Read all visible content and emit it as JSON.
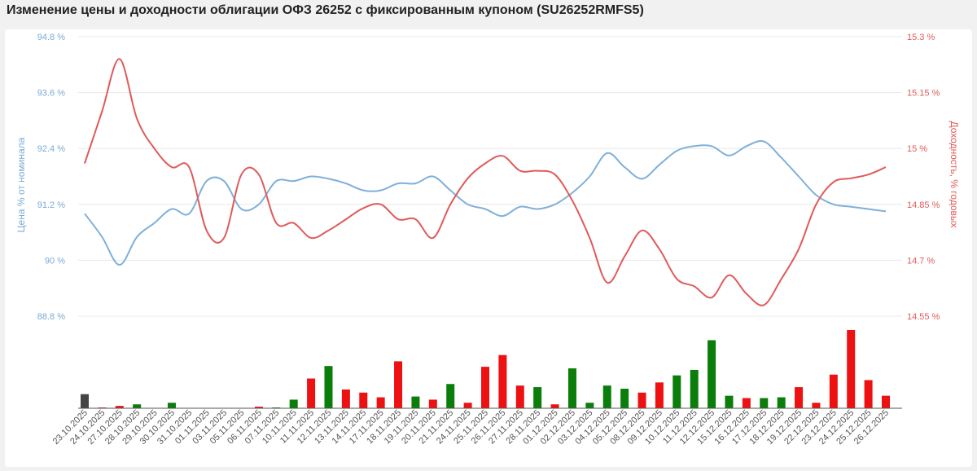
{
  "page": {
    "title": "Изменение цены и доходности облигации ОФЗ 26252 с фиксированным купоном (SU26252RMFS5)"
  },
  "colors": {
    "price_line": "#7fb0d9",
    "yield_line": "#e05a5a",
    "bar_up": "#0a7d0a",
    "bar_down": "#ee1111",
    "bar_neutral": "#444444",
    "price_axis_text": "#7aaad6",
    "yield_axis_text": "#e05a5a",
    "grid": "#e8e8e8"
  },
  "chart_data": {
    "type": "line",
    "title": "",
    "ylabel_left": "Цена % от номинала",
    "ylabel_right": "Доходность, % годовых",
    "left_ticks": [
      "94.8 %",
      "93.6 %",
      "92.4 %",
      "91.2 %",
      "90 %",
      "88.8 %"
    ],
    "right_ticks": [
      "15.3 %",
      "15.15 %",
      "15 %",
      "14.85 %",
      "14.7 %",
      "14.55 %"
    ],
    "ylim_left": [
      88.8,
      94.8
    ],
    "ylim_right": [
      14.55,
      15.3
    ],
    "categories": [
      "23.10.2025",
      "24.10.2025",
      "27.10.2025",
      "28.10.2025",
      "29.10.2025",
      "30.10.2025",
      "31.10.2025",
      "01.11.2025",
      "03.11.2025",
      "05.11.2025",
      "06.11.2025",
      "07.11.2025",
      "10.11.2025",
      "11.11.2025",
      "12.11.2025",
      "13.11.2025",
      "14.11.2025",
      "17.11.2025",
      "18.11.2025",
      "19.11.2025",
      "20.11.2025",
      "21.11.2025",
      "24.11.2025",
      "25.11.2025",
      "26.11.2025",
      "27.11.2025",
      "28.11.2025",
      "01.12.2025",
      "02.12.2025",
      "03.12.2025",
      "04.12.2025",
      "05.12.2025",
      "08.12.2025",
      "09.12.2025",
      "10.12.2025",
      "11.12.2025",
      "12.12.2025",
      "15.12.2025",
      "16.12.2025",
      "17.12.2025",
      "18.12.2025",
      "19.12.2025",
      "22.12.2025",
      "23.12.2025",
      "24.12.2025",
      "25.12.2025",
      "26.12.2025"
    ],
    "series": [
      {
        "name": "Цена % от номинала",
        "axis": "left",
        "values": [
          91.0,
          90.5,
          89.9,
          90.5,
          90.8,
          91.1,
          91.0,
          91.7,
          91.7,
          91.1,
          91.2,
          91.7,
          91.7,
          91.8,
          91.75,
          91.65,
          91.5,
          91.5,
          91.65,
          91.65,
          91.8,
          91.5,
          91.2,
          91.1,
          90.95,
          91.15,
          91.1,
          91.2,
          91.45,
          91.8,
          92.3,
          92.0,
          91.75,
          92.05,
          92.35,
          92.45,
          92.45,
          92.25,
          92.45,
          92.55,
          92.2,
          91.8,
          91.4,
          91.2,
          91.15,
          91.1,
          91.05
        ],
        "color": "#7fb0d9"
      },
      {
        "name": "Доходность, % годовых",
        "axis": "right",
        "values": [
          14.96,
          15.1,
          15.24,
          15.08,
          15.0,
          14.95,
          14.95,
          14.78,
          14.76,
          14.93,
          14.93,
          14.8,
          14.8,
          14.76,
          14.78,
          14.81,
          14.84,
          14.85,
          14.81,
          14.81,
          14.76,
          14.85,
          14.92,
          14.96,
          14.98,
          14.94,
          14.94,
          14.93,
          14.86,
          14.76,
          14.64,
          14.71,
          14.78,
          14.73,
          14.65,
          14.63,
          14.6,
          14.66,
          14.61,
          14.58,
          14.65,
          14.73,
          14.85,
          14.91,
          14.92,
          14.93,
          14.95
        ],
        "color": "#e05a5a"
      },
      {
        "name": "volume",
        "axis": "bars",
        "values": [
          18,
          1,
          3,
          5,
          0,
          7,
          0,
          0,
          0,
          0,
          2,
          1,
          11,
          38,
          54,
          24,
          20,
          14,
          60,
          15,
          11,
          31,
          7,
          53,
          68,
          29,
          27,
          5,
          51,
          7,
          29,
          25,
          20,
          33,
          42,
          49,
          87,
          16,
          13,
          13,
          14,
          27,
          7,
          43,
          100,
          36,
          16
        ],
        "direction": [
          "neutral",
          "down",
          "down",
          "up",
          "up",
          "up",
          "none",
          "none",
          "none",
          "none",
          "down",
          "up",
          "up",
          "down",
          "up",
          "down",
          "down",
          "down",
          "down",
          "up",
          "down",
          "up",
          "down",
          "down",
          "down",
          "down",
          "up",
          "down",
          "up",
          "up",
          "up",
          "up",
          "down",
          "down",
          "up",
          "up",
          "up",
          "up",
          "down",
          "up",
          "up",
          "down",
          "down",
          "down",
          "down",
          "down",
          "down"
        ]
      }
    ],
    "grid": true,
    "legend": "none"
  }
}
